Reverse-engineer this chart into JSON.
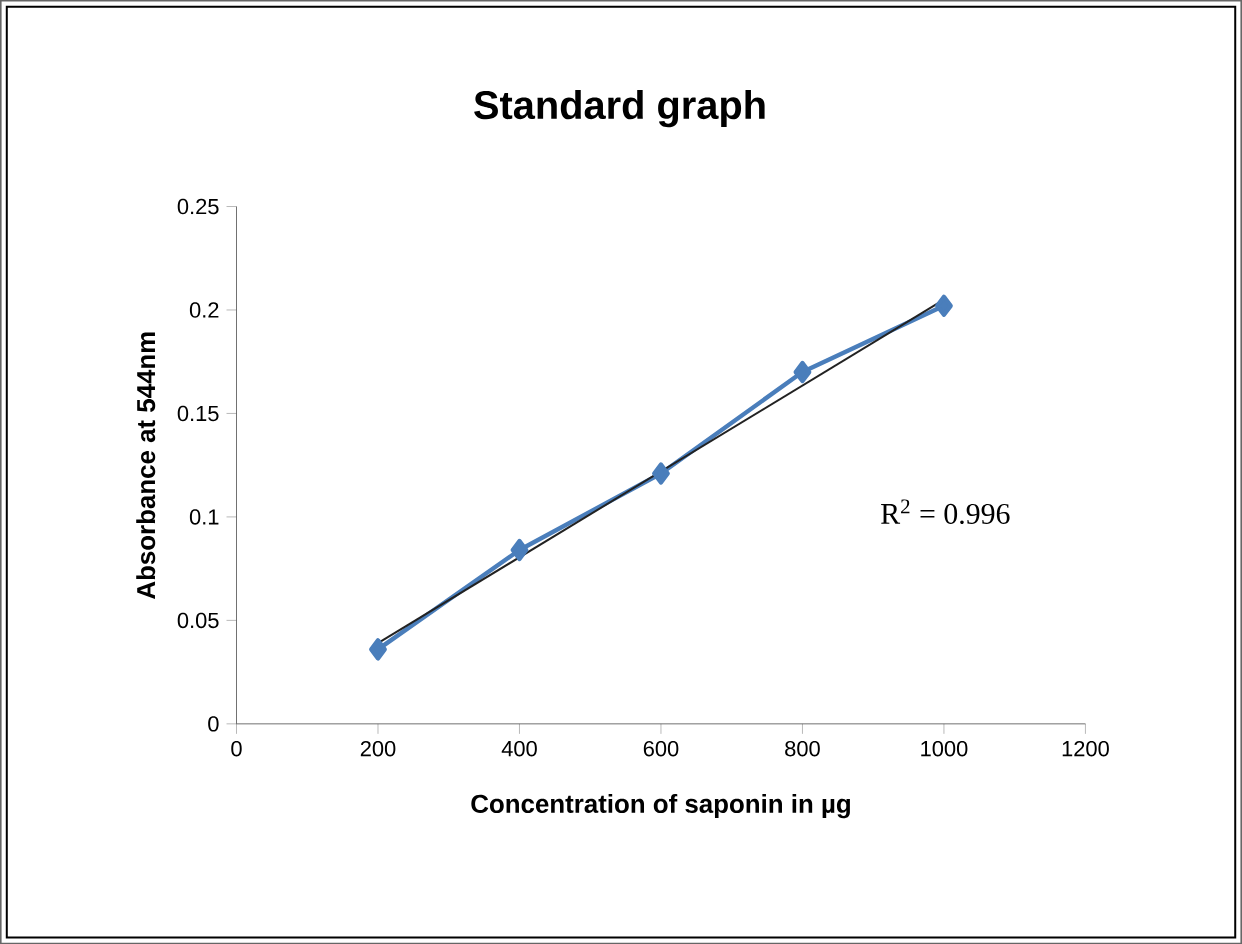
{
  "chart_data": {
    "type": "line",
    "title": "Standard graph",
    "xlabel": "Concentration of saponin in µg",
    "ylabel": "Absorbance at 544nm",
    "x": [
      200,
      400,
      600,
      800,
      1000
    ],
    "series": [
      {
        "color": "#4a7ebb",
        "marker": "diamond",
        "values": [
          0.036,
          0.084,
          0.121,
          0.17,
          0.202
        ]
      },
      {
        "color": "#222222",
        "marker": "none",
        "x": [
          200,
          1000
        ],
        "values": [
          0.039,
          0.205
        ]
      }
    ],
    "annotations": [
      "R$^{2}$ = 0.996"
    ],
    "xlim": [
      0,
      1200
    ],
    "xticks": [
      0,
      200,
      400,
      600,
      800,
      1000,
      1200
    ],
    "ylim": [
      0,
      0.25
    ],
    "yticks": [
      0,
      0.05,
      0.1,
      0.15,
      0.2,
      0.25
    ]
  }
}
